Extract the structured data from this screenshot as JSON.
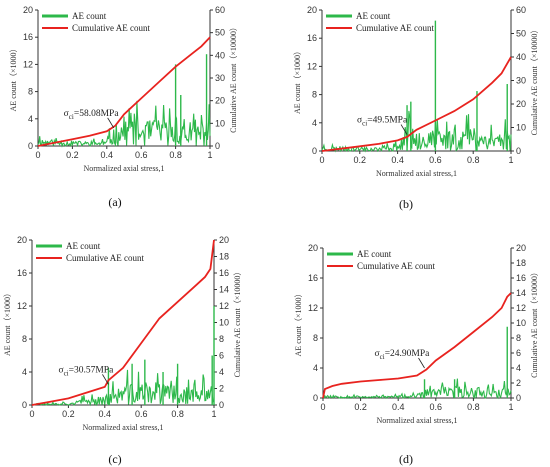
{
  "colors": {
    "ae": "#2db84a",
    "cum": "#e8231f",
    "axis": "#333333"
  },
  "chart_data": [
    {
      "id": "a",
      "type": "line",
      "panel_label": "(a)",
      "xlabel": "Normalized axial stress,1",
      "ylabel": "AE count（×1000）",
      "y2label": "Cumulative AE count（×10000）",
      "xlim": [
        0,
        1
      ],
      "ylim": [
        0,
        20
      ],
      "y2lim": [
        0,
        60
      ],
      "xticks": [
        "0",
        "0.2",
        "0.4",
        "0.6",
        "0.8",
        "1"
      ],
      "yticks": [
        "0",
        "4",
        "8",
        "12",
        "16",
        "20"
      ],
      "y2ticks": [
        "0",
        "10",
        "20",
        "30",
        "40",
        "50",
        "60"
      ],
      "legend": [
        "AE count",
        "Cumulative AE count"
      ],
      "annotation": {
        "label": "σci=58.08MPa",
        "sym": "σ",
        "sub": "ci",
        "val": "=58.08MPa",
        "x": 0.44,
        "y2": 8
      },
      "seed": 11,
      "cumulative": {
        "name": "Cumulative AE count",
        "x": [
          0,
          0.1,
          0.2,
          0.3,
          0.4,
          0.45,
          0.5,
          0.6,
          0.7,
          0.8,
          0.9,
          0.95,
          1.0
        ],
        "y": [
          0,
          1.5,
          3,
          4.5,
          6.5,
          9,
          14,
          21,
          28,
          35,
          41,
          44,
          48
        ]
      },
      "ae_envelope": {
        "name": "AE count",
        "x": [
          0,
          0.05,
          0.3,
          0.4,
          0.45,
          0.5,
          0.6,
          0.7,
          0.8,
          0.9,
          0.95,
          1.0
        ],
        "y": [
          1.5,
          1.2,
          0.8,
          1.0,
          4.0,
          5.5,
          4.5,
          5.0,
          4.5,
          3.5,
          4.0,
          5.0
        ]
      },
      "ae_spikes": [
        {
          "x": 0.8,
          "y": 12
        },
        {
          "x": 0.83,
          "y": 7.5
        },
        {
          "x": 0.98,
          "y": 13.5
        }
      ]
    },
    {
      "id": "b",
      "type": "line",
      "panel_label": "(b)",
      "xlabel": "Normalized axial stress,1",
      "ylabel": "AE count（×1000）",
      "y2label": "Cumulative AE count（×10000）",
      "xlim": [
        0,
        1
      ],
      "ylim": [
        0,
        20
      ],
      "y2lim": [
        0,
        60
      ],
      "xticks": [
        "0",
        "0.2",
        "0.4",
        "0.6",
        "0.8",
        "1"
      ],
      "yticks": [
        "0",
        "4",
        "8",
        "12",
        "16",
        "20"
      ],
      "y2ticks": [
        "0",
        "10",
        "20",
        "30",
        "40",
        "50",
        "60"
      ],
      "legend": [
        "AE count",
        "Cumulative AE count"
      ],
      "annotation": {
        "label": "σci=49.5MPa",
        "sym": "σ",
        "sub": "ci",
        "val": "=49.5MPa",
        "x": 0.45,
        "y2": 7
      },
      "seed": 23,
      "cumulative": {
        "name": "Cumulative AE count",
        "x": [
          0,
          0.1,
          0.2,
          0.3,
          0.4,
          0.45,
          0.5,
          0.6,
          0.7,
          0.8,
          0.9,
          0.95,
          1.0
        ],
        "y": [
          0,
          1,
          2,
          3,
          4.5,
          6,
          9,
          13,
          17,
          22,
          29,
          33,
          40
        ]
      },
      "ae_envelope": {
        "name": "AE count",
        "x": [
          0,
          0.3,
          0.4,
          0.45,
          0.5,
          0.6,
          0.7,
          0.8,
          0.9,
          1.0
        ],
        "y": [
          0.8,
          0.6,
          1.2,
          4.0,
          4.5,
          3.5,
          4.0,
          4.5,
          3.5,
          4.0
        ]
      },
      "ae_spikes": [
        {
          "x": 0.45,
          "y": 6.5
        },
        {
          "x": 0.47,
          "y": 7
        },
        {
          "x": 0.6,
          "y": 18.5
        },
        {
          "x": 0.82,
          "y": 8.5
        },
        {
          "x": 0.98,
          "y": 9.5
        }
      ]
    },
    {
      "id": "c",
      "type": "line",
      "panel_label": "(c)",
      "xlabel": "Normalized axial stress,1",
      "ylabel": "AE count（×1000）",
      "y2label": "Cumulative AE count（×10000）",
      "xlim": [
        0,
        1
      ],
      "ylim": [
        0,
        20
      ],
      "y2lim": [
        0,
        20
      ],
      "xticks": [
        "0",
        "0.2",
        "0.4",
        "0.6",
        "0.8",
        "1"
      ],
      "yticks": [
        "0",
        "4",
        "8",
        "12",
        "16",
        "20"
      ],
      "y2ticks": [
        "0",
        "2",
        "4",
        "6",
        "8",
        "10",
        "12",
        "14",
        "16",
        "18",
        "20"
      ],
      "legend": [
        "AE count",
        "Cumulative AE count"
      ],
      "annotation": {
        "label": "σci=30.57MPa",
        "sym": "σ",
        "sub": "ci",
        "val": "=30.57MPa",
        "x": 0.42,
        "y2": 2.5
      },
      "seed": 37,
      "cumulative": {
        "name": "Cumulative AE count",
        "x": [
          0,
          0.1,
          0.2,
          0.3,
          0.4,
          0.42,
          0.5,
          0.6,
          0.7,
          0.8,
          0.9,
          0.95,
          0.98,
          1.0
        ],
        "y": [
          0,
          0.4,
          0.8,
          1.5,
          2.2,
          3.0,
          4.5,
          7.5,
          10.5,
          12.5,
          14.5,
          15.5,
          16.5,
          20
        ]
      },
      "ae_envelope": {
        "name": "AE count",
        "x": [
          0,
          0.2,
          0.3,
          0.4,
          0.5,
          0.6,
          0.7,
          0.8,
          0.9,
          1.0
        ],
        "y": [
          0.3,
          0.3,
          1.0,
          1.5,
          3.0,
          3.5,
          3.5,
          3.0,
          2.5,
          3.0
        ]
      },
      "ae_spikes": [
        {
          "x": 0.42,
          "y": 4.5
        },
        {
          "x": 0.55,
          "y": 5.0
        },
        {
          "x": 0.62,
          "y": 5.5
        },
        {
          "x": 0.72,
          "y": 4.0
        },
        {
          "x": 0.8,
          "y": 5.0
        },
        {
          "x": 0.99,
          "y": 6.0
        },
        {
          "x": 1.0,
          "y": 12
        }
      ]
    },
    {
      "id": "d",
      "type": "line",
      "panel_label": "(d)",
      "xlabel": "Normalized axial stress,1",
      "ylabel": "AE count（×1000）",
      "y2label": "Cumulative AE count（×10000）",
      "xlim": [
        0,
        1
      ],
      "ylim": [
        0,
        20
      ],
      "y2lim": [
        0,
        20
      ],
      "xticks": [
        "0",
        "0.2",
        "0.4",
        "0.6",
        "0.8",
        "1"
      ],
      "yticks": [
        "0",
        "4",
        "8",
        "12",
        "16",
        "20"
      ],
      "y2ticks": [
        "0",
        "2",
        "4",
        "6",
        "8",
        "10",
        "12",
        "14",
        "16",
        "18",
        "20"
      ],
      "legend": [
        "AE count",
        "Cumulative AE count"
      ],
      "annotation": {
        "label": "σci=24.90MPa",
        "sym": "σ",
        "sub": "ci",
        "val": "=24.90MPa",
        "x": 0.54,
        "y2": 4
      },
      "seed": 53,
      "cumulative": {
        "name": "Cumulative AE count",
        "x": [
          0,
          0.01,
          0.05,
          0.1,
          0.2,
          0.3,
          0.4,
          0.5,
          0.55,
          0.6,
          0.7,
          0.8,
          0.9,
          0.95,
          0.98,
          1.0
        ],
        "y": [
          0,
          1.2,
          1.6,
          1.9,
          2.2,
          2.4,
          2.6,
          3.0,
          3.8,
          5.0,
          6.8,
          8.8,
          10.8,
          12.0,
          13.5,
          14
        ]
      },
      "ae_envelope": {
        "name": "AE count",
        "x": [
          0,
          0.1,
          0.3,
          0.5,
          0.55,
          0.7,
          0.8,
          0.9,
          1.0
        ],
        "y": [
          0.5,
          0.4,
          0.3,
          0.5,
          1.5,
          2.0,
          2.0,
          1.5,
          2.0
        ]
      },
      "ae_spikes": [
        {
          "x": 0.54,
          "y": 2.5
        },
        {
          "x": 0.7,
          "y": 2.5
        },
        {
          "x": 0.98,
          "y": 9.5
        }
      ]
    }
  ]
}
